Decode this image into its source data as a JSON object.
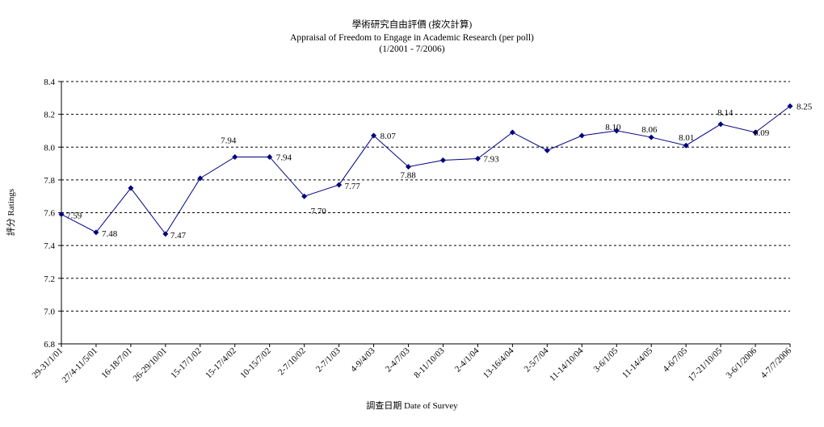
{
  "chart_data": {
    "type": "line",
    "title": "學術研究自由評價 (按次計算)",
    "subtitle": "Appraisal of Freedom to Engage in Academic Research (per poll)",
    "subtitle2": "(1/2001 - 7/2006)",
    "xlabel": "調查日期 Date of Survey",
    "ylabel": "評分 Ratings",
    "ylim": [
      6.8,
      8.4
    ],
    "ytick_step": 0.2,
    "yticks": [
      "6.8",
      "7.0",
      "7.2",
      "7.4",
      "7.6",
      "7.8",
      "8.0",
      "8.2",
      "8.4"
    ],
    "grid": true,
    "legend": "none",
    "line_color": "#000080",
    "categories": [
      "29-31/1/01",
      "27/4-11/5/01",
      "16-18/7/01",
      "26-29/10/01",
      "15-17/1/02",
      "15-17/4/02",
      "10-15/7/02",
      "2-7/10/02",
      "2-7/1/03",
      "4-9/4/03",
      "2-4/7/03",
      "8-11/10/03",
      "2-4/1/04",
      "13-16/4/04",
      "2-5/7/04",
      "11-14/10/04",
      "3-6/1/05",
      "11-14/4/05",
      "4-6/7/05",
      "17-21/10/05",
      "3-6/1/2006",
      "4-7/7/2006"
    ],
    "values": [
      7.59,
      7.48,
      7.75,
      7.47,
      7.81,
      7.94,
      7.94,
      7.7,
      7.77,
      8.07,
      7.88,
      7.92,
      7.93,
      8.09,
      7.98,
      8.07,
      8.1,
      8.06,
      8.01,
      8.14,
      8.09,
      8.25
    ],
    "data_labels": [
      {
        "index": 0,
        "text": "7.59"
      },
      {
        "index": 1,
        "text": "7.48"
      },
      {
        "index": 3,
        "text": "7.47"
      },
      {
        "index": 5,
        "text": "7.94"
      },
      {
        "index": 6,
        "text": "7.94"
      },
      {
        "index": 7,
        "text": "7.70"
      },
      {
        "index": 8,
        "text": "7.77"
      },
      {
        "index": 9,
        "text": "8.07"
      },
      {
        "index": 10,
        "text": "7.88"
      },
      {
        "index": 12,
        "text": "7.93"
      },
      {
        "index": 16,
        "text": "8.10"
      },
      {
        "index": 17,
        "text": "8.06"
      },
      {
        "index": 18,
        "text": "8.01"
      },
      {
        "index": 19,
        "text": "8.14"
      },
      {
        "index": 20,
        "text": "8.09"
      },
      {
        "index": 21,
        "text": "8.25"
      }
    ]
  }
}
